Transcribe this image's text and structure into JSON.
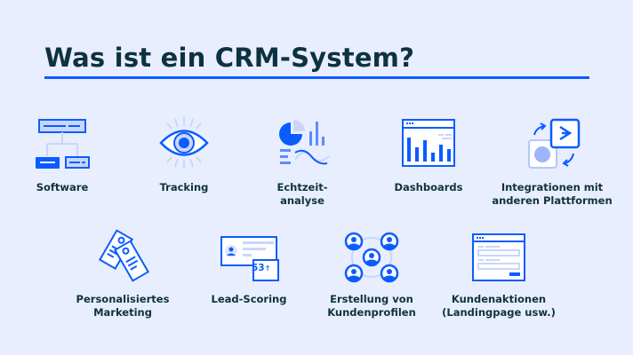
{
  "title": "Was ist ein CRM-System?",
  "colors": {
    "background": "#e8eefd",
    "accent": "#0b5cff",
    "light_accent": "#c9d6fb",
    "text": "#0d3242"
  },
  "items": [
    {
      "label": "Software",
      "icon": "software-hierarchy-icon"
    },
    {
      "label": "Tracking",
      "icon": "eye-icon"
    },
    {
      "label": "Echtzeit-\nanalyse",
      "icon": "realtime-analytics-icon"
    },
    {
      "label": "Dashboards",
      "icon": "dashboard-icon"
    },
    {
      "label": "Integrationen mit\nanderen Plattformen",
      "icon": "integration-icon"
    },
    {
      "label": "Personalisiertes\nMarketing",
      "icon": "tags-icon"
    },
    {
      "label": "Lead-Scoring",
      "icon": "lead-score-card-icon",
      "score": "53"
    },
    {
      "label": "Erstellung von\nKundenprofilen",
      "icon": "customer-profiles-icon"
    },
    {
      "label": "Kundenaktionen\n(Landingpage usw.)",
      "icon": "landing-page-icon"
    }
  ]
}
